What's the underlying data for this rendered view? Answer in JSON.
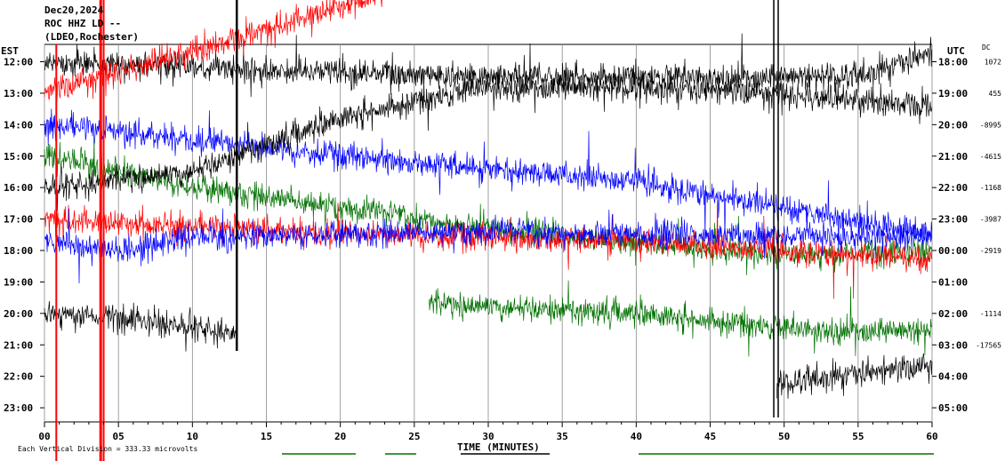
{
  "header": {
    "date": "Dec20,2024",
    "channel": "ROC HHZ LD --",
    "network": "(LDEO,Rochester)"
  },
  "labels": {
    "left_tz": "EST",
    "right_tz": "UTC",
    "dc": "DC",
    "xlabel": "TIME (MINUTES)",
    "footer": "Each Vertical Division =  333.33 microvolts"
  },
  "chart_data": {
    "type": "line",
    "title": "",
    "xlabel": "TIME (MINUTES)",
    "xlim": [
      0,
      60
    ],
    "x_ticks": [
      "00",
      "05",
      "10",
      "15",
      "20",
      "25",
      "30",
      "35",
      "40",
      "45",
      "50",
      "55",
      "60"
    ],
    "rows_local": [
      "12:00",
      "13:00",
      "14:00",
      "15:00",
      "16:00",
      "17:00",
      "18:00",
      "19:00",
      "20:00",
      "21:00",
      "22:00",
      "23:00"
    ],
    "rows_utc": [
      "18:00",
      "19:00",
      "20:00",
      "21:00",
      "22:00",
      "23:00",
      "00:00",
      "01:00",
      "02:00",
      "03:00",
      "04:00",
      "05:00"
    ],
    "dc_offsets": [
      "1072",
      "455",
      "-8995",
      "-4615",
      "-1168",
      "-3987",
      "-2919",
      "",
      "-1114",
      "-17565",
      "",
      ""
    ],
    "colors": [
      "#000000",
      "#ff0000",
      "#0000ff",
      "#007000"
    ],
    "traces": [
      {
        "row": 0,
        "color": "#000000",
        "start": 0,
        "end": 60,
        "drift": [
          [
            0,
            0
          ],
          [
            30,
            0.5
          ],
          [
            55,
            0.5
          ],
          [
            60,
            -0.3
          ]
        ]
      },
      {
        "row": 1,
        "color": "#ff0000",
        "start": 0,
        "end": 23,
        "drift": [
          [
            0,
            0
          ],
          [
            12,
            -1.6
          ],
          [
            23,
            -3.2
          ]
        ]
      },
      {
        "row": 2,
        "color": "#0000ff",
        "start": 0,
        "end": 60,
        "drift": [
          [
            0,
            0
          ],
          [
            20,
            1.0
          ],
          [
            40,
            1.8
          ],
          [
            60,
            3.5
          ]
        ]
      },
      {
        "row": 3,
        "color": "#007000",
        "start": 0,
        "end": 60,
        "drift": [
          [
            0,
            0
          ],
          [
            10,
            1.0
          ],
          [
            30,
            2.3
          ],
          [
            50,
            3.2
          ],
          [
            60,
            3.0
          ]
        ]
      },
      {
        "row": 4,
        "color": "#000000",
        "start": 0,
        "end": 60,
        "drift": [
          [
            0,
            0
          ],
          [
            10,
            -0.5
          ],
          [
            20,
            -2.2
          ],
          [
            30,
            -3.2
          ],
          [
            45,
            -3.1
          ],
          [
            60,
            -2.6
          ]
        ]
      },
      {
        "row": 5,
        "color": "#ff0000",
        "start": 0,
        "end": 60,
        "drift": [
          [
            0,
            0
          ],
          [
            20,
            0.5
          ],
          [
            40,
            0.7
          ],
          [
            60,
            1.3
          ]
        ]
      },
      {
        "row": 6,
        "color": "#0000ff",
        "start": 0,
        "end": 60,
        "drift": [
          [
            0,
            -0.3
          ],
          [
            5,
            0
          ],
          [
            10,
            -0.4
          ],
          [
            30,
            -0.6
          ],
          [
            60,
            -0.4
          ]
        ]
      },
      {
        "row": 8,
        "color": "#000000",
        "start": 0,
        "end": 13,
        "drift": [
          [
            0,
            0
          ],
          [
            6,
            0.2
          ],
          [
            13,
            0.6
          ]
        ]
      },
      {
        "row": 8,
        "color": "#007000",
        "start": 26,
        "end": 60,
        "drift": [
          [
            26,
            -0.3
          ],
          [
            40,
            0
          ],
          [
            50,
            0.5
          ],
          [
            60,
            0.6
          ]
        ]
      },
      {
        "row": 10,
        "color": "#000000",
        "start": 49.5,
        "end": 60,
        "drift": [
          [
            49.5,
            0.3
          ],
          [
            55,
            -0.1
          ],
          [
            60,
            -0.3
          ]
        ]
      }
    ],
    "annotations": [
      "Each Vertical Division =  333.33 microvolts"
    ]
  }
}
